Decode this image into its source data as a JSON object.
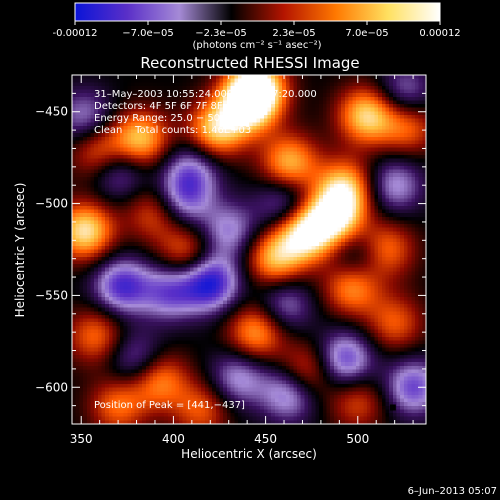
{
  "chart_data": {
    "type": "heatmap",
    "title": "Reconstructed RHESSI Image",
    "xlabel": "Heliocentric X (arcsec)",
    "ylabel": "Heliocentric Y (arcsec)",
    "xlim": [
      345,
      537
    ],
    "ylim": [
      -620,
      -430
    ],
    "x_ticks": [
      350,
      400,
      450,
      500
    ],
    "y_ticks": [
      -450,
      -500,
      -550,
      -600
    ],
    "colorbar": {
      "unit_label": "(photons cm⁻² s⁻¹ asec⁻²)",
      "tick_labels": [
        "-0.00012",
        "−7.0e−05",
        "−2.3e−05",
        "2.3e−05",
        "7.0e−05",
        "0.00012"
      ],
      "colors": [
        "#0a14d8",
        "#5a2fc8",
        "#a58ad6",
        "#000000",
        "#b41400",
        "#ff7800",
        "#ffe060",
        "#ffffff"
      ]
    },
    "annotations": {
      "time": "31–May–2003 10:55:24.000 to 10:57:20.000",
      "detectors": "Detectors: 4F 5F 6F 7F 8F, Att 0",
      "energy": "Energy Range: 25.0 − 50.0 keV",
      "method": "Clean    Total counts: 1.46E+03",
      "peak": "Position of Peak = [441,−437]"
    },
    "peak_position": [
      441,
      -437
    ],
    "hot_spots": [
      {
        "x": 445,
        "y": -437,
        "v": 1.0
      },
      {
        "x": 440,
        "y": -447,
        "v": 0.8
      },
      {
        "x": 423,
        "y": -460,
        "v": 0.75
      },
      {
        "x": 505,
        "y": -452,
        "v": 0.8
      },
      {
        "x": 527,
        "y": -458,
        "v": 0.5
      },
      {
        "x": 463,
        "y": -478,
        "v": 0.7
      },
      {
        "x": 493,
        "y": -491,
        "v": 0.7
      },
      {
        "x": 472,
        "y": -516,
        "v": 0.95
      },
      {
        "x": 488,
        "y": -507,
        "v": 0.85
      },
      {
        "x": 455,
        "y": -530,
        "v": 0.7
      },
      {
        "x": 497,
        "y": -545,
        "v": 0.65
      },
      {
        "x": 515,
        "y": -525,
        "v": 0.55
      },
      {
        "x": 382,
        "y": -465,
        "v": 0.75
      },
      {
        "x": 360,
        "y": -472,
        "v": 0.55
      },
      {
        "x": 352,
        "y": -515,
        "v": 0.85
      },
      {
        "x": 407,
        "y": -527,
        "v": 0.5
      },
      {
        "x": 390,
        "y": -505,
        "v": 0.45
      },
      {
        "x": 445,
        "y": -570,
        "v": 0.65
      },
      {
        "x": 472,
        "y": -592,
        "v": 0.55
      },
      {
        "x": 392,
        "y": -596,
        "v": 0.6
      },
      {
        "x": 358,
        "y": -572,
        "v": 0.5
      },
      {
        "x": 370,
        "y": -610,
        "v": 0.5
      },
      {
        "x": 520,
        "y": -565,
        "v": 0.45
      },
      {
        "x": 415,
        "y": -612,
        "v": 0.45
      },
      {
        "x": 500,
        "y": -608,
        "v": 0.4
      }
    ],
    "cold_spots": [
      {
        "x": 372,
        "y": -545,
        "v": 0.8
      },
      {
        "x": 398,
        "y": -548,
        "v": 0.65
      },
      {
        "x": 420,
        "y": -543,
        "v": 0.95
      },
      {
        "x": 405,
        "y": -498,
        "v": 0.6
      },
      {
        "x": 410,
        "y": -482,
        "v": 0.55
      },
      {
        "x": 352,
        "y": -453,
        "v": 0.5
      },
      {
        "x": 370,
        "y": -482,
        "v": 0.55
      },
      {
        "x": 460,
        "y": -500,
        "v": 0.5
      },
      {
        "x": 463,
        "y": -603,
        "v": 0.7
      },
      {
        "x": 493,
        "y": -585,
        "v": 0.75
      },
      {
        "x": 530,
        "y": -600,
        "v": 0.7
      },
      {
        "x": 520,
        "y": -490,
        "v": 0.55
      },
      {
        "x": 525,
        "y": -440,
        "v": 0.5
      },
      {
        "x": 380,
        "y": -585,
        "v": 0.5
      },
      {
        "x": 435,
        "y": -595,
        "v": 0.55
      },
      {
        "x": 460,
        "y": -555,
        "v": 0.5
      },
      {
        "x": 500,
        "y": -530,
        "v": 0.45
      },
      {
        "x": 430,
        "y": -515,
        "v": 0.55
      }
    ]
  },
  "footer": {
    "date": "6–Jun–2013 05:07"
  }
}
